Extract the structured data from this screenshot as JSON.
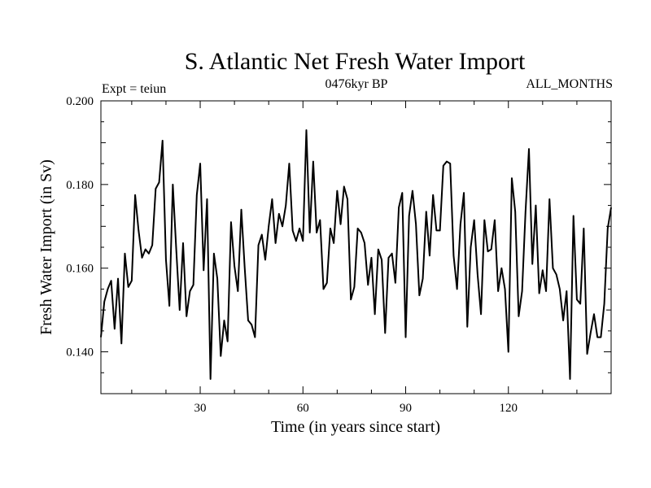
{
  "chart_data": {
    "type": "line",
    "title": "S. Atlantic Net Fresh Water Import",
    "subtitle_left": "Expt = teiun",
    "subtitle_center": "0476kyr BP",
    "subtitle_right": "ALL_MONTHS",
    "xlabel": "Time (in years since start)",
    "ylabel": "Fresh Water Import (in Sv)",
    "xlim": [
      1,
      150
    ],
    "ylim": [
      0.13,
      0.2
    ],
    "xticks": [
      30,
      60,
      90,
      120
    ],
    "yticks": [
      0.14,
      0.16,
      0.18,
      0.2
    ],
    "ytick_labels": [
      "0.140",
      "0.160",
      "0.180",
      "0.200"
    ],
    "grid": false,
    "series": [
      {
        "name": "Net Fresh Water Import",
        "x": [
          1,
          2,
          3,
          4,
          5,
          6,
          7,
          8,
          9,
          10,
          11,
          12,
          13,
          14,
          15,
          16,
          17,
          18,
          19,
          20,
          21,
          22,
          23,
          24,
          25,
          26,
          27,
          28,
          29,
          30,
          31,
          32,
          33,
          34,
          35,
          36,
          37,
          38,
          39,
          40,
          41,
          42,
          43,
          44,
          45,
          46,
          47,
          48,
          49,
          50,
          51,
          52,
          53,
          54,
          55,
          56,
          57,
          58,
          59,
          60,
          61,
          62,
          63,
          64,
          65,
          66,
          67,
          68,
          69,
          70,
          71,
          72,
          73,
          74,
          75,
          76,
          77,
          78,
          79,
          80,
          81,
          82,
          83,
          84,
          85,
          86,
          87,
          88,
          89,
          90,
          91,
          92,
          93,
          94,
          95,
          96,
          97,
          98,
          99,
          100,
          101,
          102,
          103,
          104,
          105,
          106,
          107,
          108,
          109,
          110,
          111,
          112,
          113,
          114,
          115,
          116,
          117,
          118,
          119,
          120,
          121,
          122,
          123,
          124,
          125,
          126,
          127,
          128,
          129,
          130,
          131,
          132,
          133,
          134,
          135,
          136,
          137,
          138,
          139,
          140,
          141,
          142,
          143,
          144,
          145,
          146,
          147,
          148,
          149,
          150
        ],
        "values": [
          0.1435,
          0.152,
          0.155,
          0.157,
          0.1455,
          0.1575,
          0.142,
          0.1635,
          0.1555,
          0.157,
          0.1775,
          0.169,
          0.1625,
          0.1645,
          0.1635,
          0.1655,
          0.179,
          0.1805,
          0.1905,
          0.162,
          0.151,
          0.18,
          0.1645,
          0.15,
          0.166,
          0.1485,
          0.1545,
          0.156,
          0.1775,
          0.185,
          0.1595,
          0.1765,
          0.1335,
          0.1635,
          0.1575,
          0.139,
          0.1475,
          0.1425,
          0.171,
          0.1605,
          0.1545,
          0.174,
          0.16,
          0.1475,
          0.1465,
          0.1435,
          0.1655,
          0.168,
          0.162,
          0.17,
          0.1765,
          0.166,
          0.173,
          0.17,
          0.175,
          0.185,
          0.169,
          0.1665,
          0.1695,
          0.1665,
          0.193,
          0.1685,
          0.1855,
          0.1685,
          0.1715,
          0.155,
          0.1565,
          0.1695,
          0.166,
          0.1785,
          0.1705,
          0.1795,
          0.1765,
          0.1525,
          0.1555,
          0.1695,
          0.1685,
          0.166,
          0.156,
          0.1625,
          0.149,
          0.1645,
          0.162,
          0.1445,
          0.1625,
          0.1635,
          0.1565,
          0.1745,
          0.178,
          0.1435,
          0.1725,
          0.1785,
          0.1705,
          0.1535,
          0.1575,
          0.1735,
          0.163,
          0.1775,
          0.169,
          0.169,
          0.1845,
          0.1855,
          0.185,
          0.163,
          0.155,
          0.1705,
          0.178,
          0.146,
          0.165,
          0.1715,
          0.1585,
          0.149,
          0.1715,
          0.164,
          0.1645,
          0.1715,
          0.1545,
          0.16,
          0.155,
          0.14,
          0.1815,
          0.1735,
          0.1485,
          0.1545,
          0.1735,
          0.1885,
          0.161,
          0.175,
          0.154,
          0.1595,
          0.1545,
          0.1765,
          0.16,
          0.1585,
          0.155,
          0.1475,
          0.1545,
          0.1335,
          0.1725,
          0.1525,
          0.1515,
          0.1695,
          0.1395,
          0.1445,
          0.149,
          0.1435,
          0.1435,
          0.1515,
          0.1695,
          0.1745
        ]
      }
    ]
  }
}
